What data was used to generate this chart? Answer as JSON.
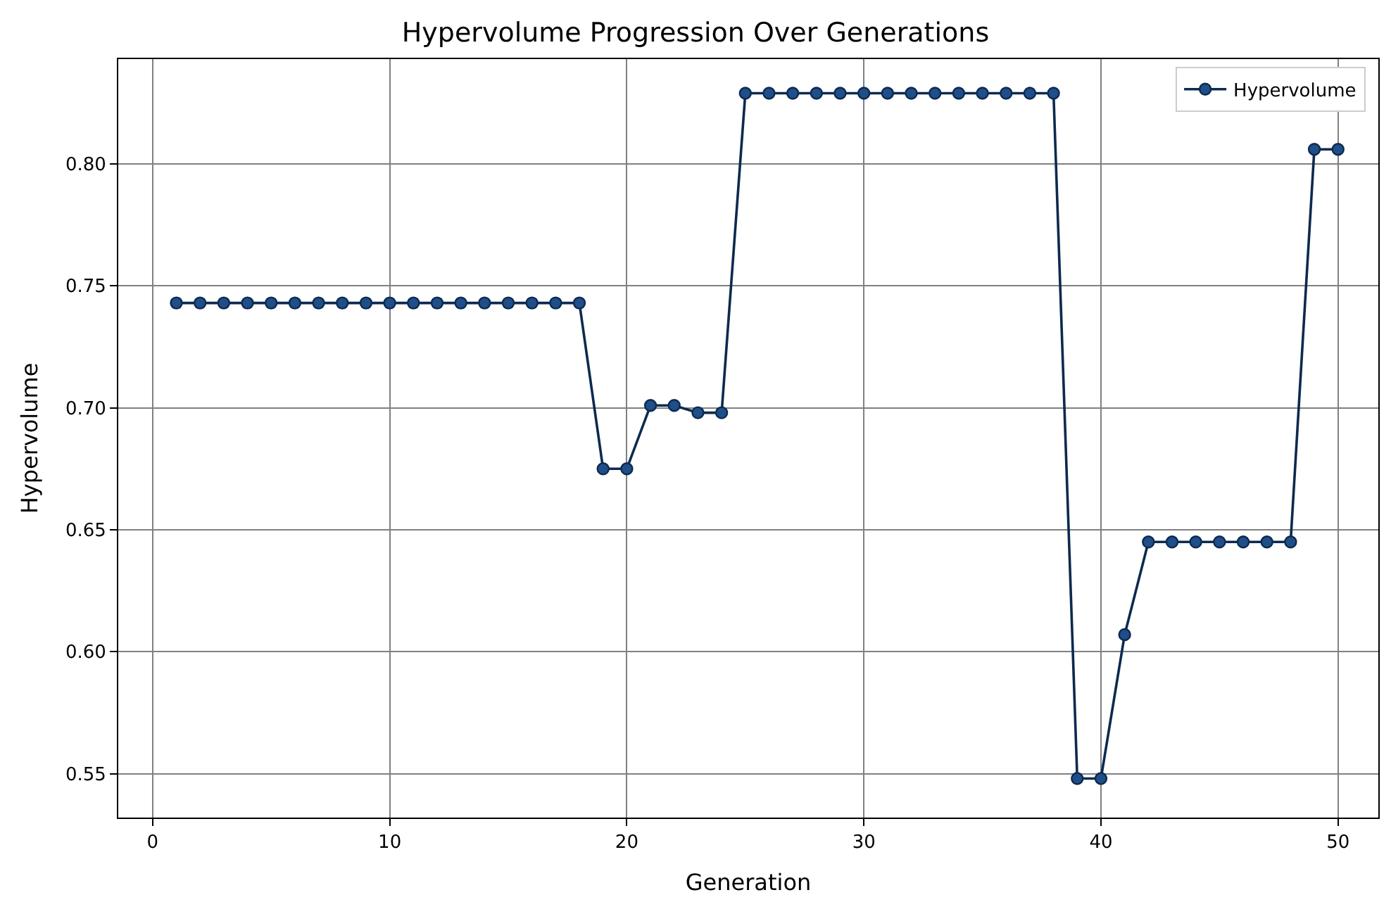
{
  "chart_data": {
    "type": "line",
    "title": "Hypervolume Progression Over Generations",
    "xlabel": "Generation",
    "ylabel": "Hypervolume",
    "x": [
      1,
      2,
      3,
      4,
      5,
      6,
      7,
      8,
      9,
      10,
      11,
      12,
      13,
      14,
      15,
      16,
      17,
      18,
      19,
      20,
      21,
      22,
      23,
      24,
      25,
      26,
      27,
      28,
      29,
      30,
      31,
      32,
      33,
      34,
      35,
      36,
      37,
      38,
      39,
      40,
      41,
      42,
      43,
      44,
      45,
      46,
      47,
      48,
      49,
      50
    ],
    "series": [
      {
        "name": "Hypervolume",
        "color": "#1f4e89",
        "values": [
          0.743,
          0.743,
          0.743,
          0.743,
          0.743,
          0.743,
          0.743,
          0.743,
          0.743,
          0.743,
          0.743,
          0.743,
          0.743,
          0.743,
          0.743,
          0.743,
          0.743,
          0.743,
          0.675,
          0.675,
          0.701,
          0.701,
          0.698,
          0.698,
          0.829,
          0.829,
          0.829,
          0.829,
          0.829,
          0.829,
          0.829,
          0.829,
          0.829,
          0.829,
          0.829,
          0.829,
          0.829,
          0.829,
          0.548,
          0.548,
          0.607,
          0.645,
          0.645,
          0.645,
          0.645,
          0.645,
          0.645,
          0.645,
          0.806,
          0.806
        ]
      }
    ],
    "xlim": [
      -1.45,
      51.7
    ],
    "ylim": [
      0.532,
      0.843
    ],
    "xticks": [
      0,
      10,
      20,
      30,
      40,
      50
    ],
    "yticks": [
      0.55,
      {
        "value": 0.6,
        "label": "0.60"
      },
      0.65,
      {
        "value": 0.7,
        "label": "0.70"
      },
      0.75,
      {
        "value": 0.8,
        "label": "0.80"
      }
    ],
    "grid": true,
    "legend": "top right",
    "marker": "circle",
    "line_style": "solid"
  }
}
